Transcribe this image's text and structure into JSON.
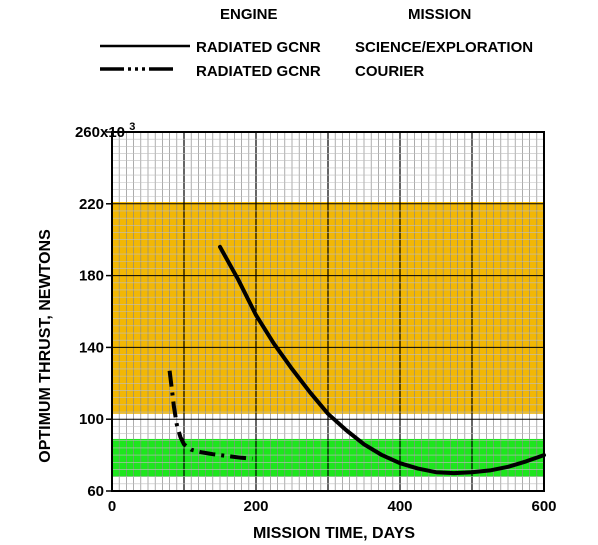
{
  "legend": {
    "engine_header": "ENGINE",
    "mission_header": "MISSION",
    "entries": [
      {
        "engine": "RADIATED GCNR",
        "mission": "SCIENCE/EXPLORATION",
        "style": "solid"
      },
      {
        "engine": "RADIATED GCNR",
        "mission": "COURIER",
        "style": "dash-dot"
      }
    ]
  },
  "colors": {
    "orange_band": "#f2b705",
    "green_band": "#1ee61e",
    "grid_light": "#bfbfbf",
    "grid_dark": "#000000",
    "curve": "#000000"
  },
  "chart_data": {
    "type": "line",
    "xlabel": "MISSION TIME, DAYS",
    "ylabel": "OPTIMUM THRUST, NEWTONS",
    "xlim": [
      0,
      600
    ],
    "ylim": [
      60,
      260
    ],
    "y_multiplier_label": "x10",
    "y_multiplier_exp": "3",
    "x_ticks": [
      {
        "value": 0,
        "label": "0"
      },
      {
        "value": 200,
        "label": "200"
      },
      {
        "value": 400,
        "label": "400"
      },
      {
        "value": 600,
        "label": "600"
      }
    ],
    "y_ticks": [
      {
        "value": 60,
        "label": "60"
      },
      {
        "value": 100,
        "label": "100"
      },
      {
        "value": 140,
        "label": "140"
      },
      {
        "value": 180,
        "label": "180"
      },
      {
        "value": 220,
        "label": "220"
      },
      {
        "value": 260,
        "label": "260"
      }
    ],
    "bands": [
      {
        "y0": 103,
        "y1": 221,
        "color": "orange"
      },
      {
        "y0": 68,
        "y1": 89,
        "color": "green"
      }
    ],
    "series": [
      {
        "name": "RADIATED GCNR SCIENCE/EXPLORATION",
        "style": "solid",
        "x": [
          150,
          175,
          200,
          225,
          250,
          275,
          300,
          325,
          350,
          375,
          400,
          425,
          450,
          475,
          500,
          525,
          550,
          575,
          600
        ],
        "y": [
          196,
          178,
          158,
          142,
          128,
          115,
          103,
          94,
          86,
          80,
          75.5,
          72.5,
          70.5,
          70,
          70.5,
          71.5,
          73.5,
          76.5,
          80
        ]
      },
      {
        "name": "RADIATED GCNR COURIER",
        "style": "dash-dot",
        "x": [
          80,
          83,
          86,
          90,
          95,
          100,
          110,
          125,
          140,
          160,
          180,
          195
        ],
        "y": [
          127,
          117,
          107,
          97,
          90,
          86,
          83,
          81.5,
          80.5,
          79.5,
          78.5,
          78
        ]
      }
    ]
  }
}
